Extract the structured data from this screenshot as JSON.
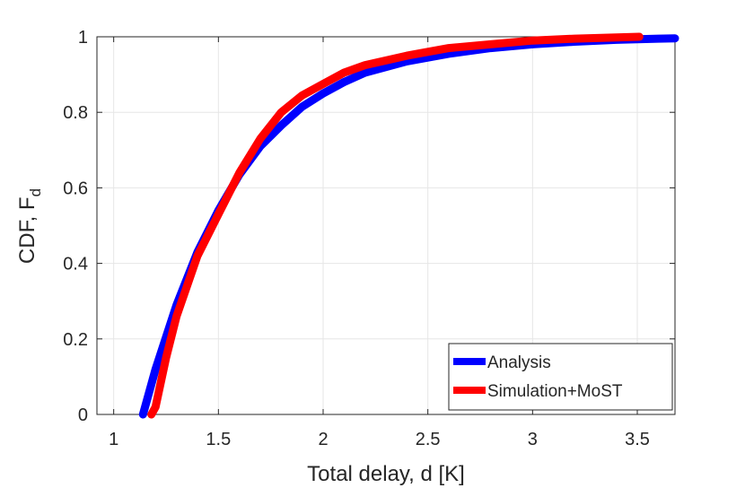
{
  "chart_data": {
    "type": "line",
    "xlabel": "Total delay, d [K]",
    "ylabel": "CDF, F",
    "ylabel_subscript": "d",
    "xlim": [
      0.92,
      3.68
    ],
    "ylim": [
      0,
      1
    ],
    "xticks": [
      1,
      1.5,
      2,
      2.5,
      3,
      3.5
    ],
    "yticks": [
      0,
      0.2,
      0.4,
      0.6,
      0.8,
      1
    ],
    "xtick_labels": [
      "1",
      "1.5",
      "2",
      "2.5",
      "3",
      "3.5"
    ],
    "ytick_labels": [
      "0",
      "0.2",
      "0.4",
      "0.6",
      "0.8",
      "1"
    ],
    "grid": true,
    "legend_position": "bottom-right",
    "series": [
      {
        "name": "Analysis",
        "color": "#0000ff",
        "x": [
          1.14,
          1.2,
          1.3,
          1.4,
          1.5,
          1.6,
          1.7,
          1.8,
          1.9,
          2.0,
          2.1,
          2.2,
          2.4,
          2.6,
          2.8,
          3.0,
          3.2,
          3.4,
          3.6,
          3.68
        ],
        "y": [
          0.0,
          0.12,
          0.29,
          0.43,
          0.54,
          0.635,
          0.71,
          0.765,
          0.815,
          0.85,
          0.88,
          0.905,
          0.935,
          0.955,
          0.97,
          0.98,
          0.987,
          0.992,
          0.995,
          0.996
        ]
      },
      {
        "name": "Simulation+MoST",
        "color": "#ff0000",
        "x": [
          1.18,
          1.2,
          1.25,
          1.3,
          1.4,
          1.5,
          1.6,
          1.7,
          1.8,
          1.9,
          2.0,
          2.1,
          2.2,
          2.4,
          2.6,
          2.8,
          3.0,
          3.2,
          3.4,
          3.51
        ],
        "y": [
          0.0,
          0.02,
          0.15,
          0.26,
          0.42,
          0.53,
          0.64,
          0.73,
          0.8,
          0.845,
          0.875,
          0.905,
          0.925,
          0.95,
          0.97,
          0.98,
          0.99,
          0.995,
          0.998,
          1.0
        ]
      }
    ]
  }
}
